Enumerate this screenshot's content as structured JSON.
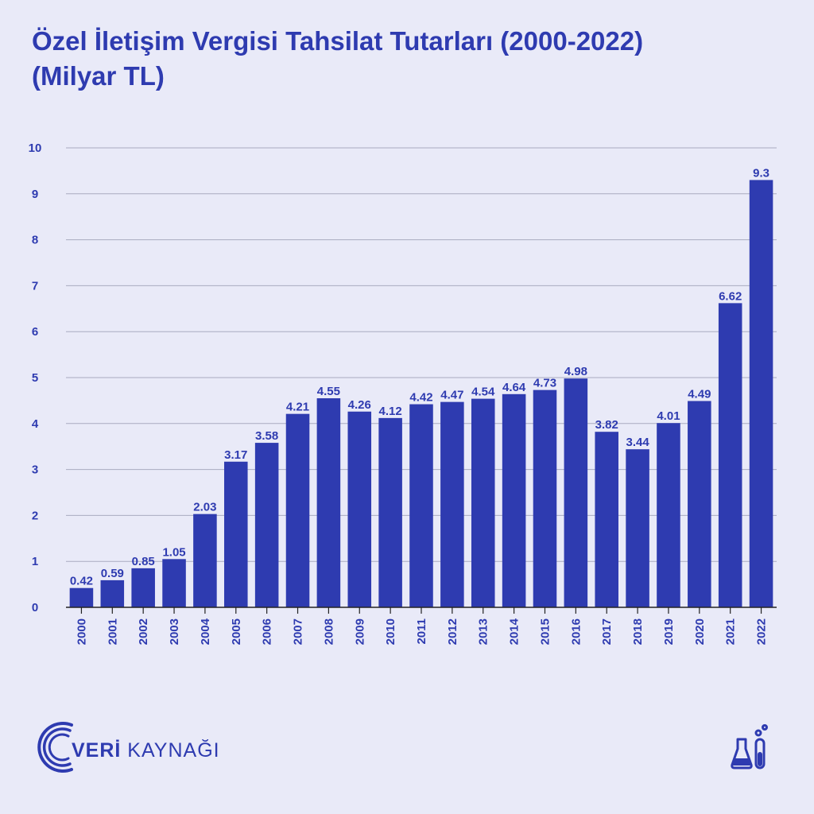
{
  "page": {
    "title_line1": "Özel İletişim Vergisi Tahsilat Tutarları (2000-2022)",
    "title_line2": "(Milyar TL)"
  },
  "brand": {
    "logo_bold": "VERİ",
    "logo_rest": " KAYNAĞI",
    "logo_icon": "signal-arcs-icon",
    "lab_icon": "lab-flask-icon"
  },
  "colors": {
    "background": "#e9eaf8",
    "bar": "#2e3bb0",
    "text": "#2e3bb0",
    "grid": "#a9abc0"
  },
  "chart_data": {
    "type": "bar",
    "title": "Özel İletişim Vergisi Tahsilat Tutarları (2000-2022) (Milyar TL)",
    "xlabel": "",
    "ylabel": "",
    "ylim": [
      0,
      10
    ],
    "yticks": [
      0,
      1,
      2,
      3,
      4,
      5,
      6,
      7,
      8,
      9,
      10
    ],
    "grid": true,
    "categories": [
      "2000",
      "2001",
      "2002",
      "2003",
      "2004",
      "2005",
      "2006",
      "2007",
      "2008",
      "2009",
      "2010",
      "2011",
      "2012",
      "2013",
      "2014",
      "2015",
      "2016",
      "2017",
      "2018",
      "2019",
      "2020",
      "2021",
      "2022"
    ],
    "values": [
      0.42,
      0.59,
      0.85,
      1.05,
      2.03,
      3.17,
      3.58,
      4.21,
      4.55,
      4.26,
      4.12,
      4.42,
      4.47,
      4.54,
      4.64,
      4.73,
      4.98,
      3.82,
      3.44,
      4.01,
      4.49,
      6.62,
      9.3
    ],
    "value_labels": [
      "0.42",
      "0.59",
      "0.85",
      "1.05",
      "2.03",
      "3.17",
      "3.58",
      "4.21",
      "4.55",
      "4.26",
      "4.12",
      "4.42",
      "4.47",
      "4.54",
      "4.64",
      "4.73",
      "4.98",
      "3.82",
      "3.44",
      "4.01",
      "4.49",
      "6.62",
      "9.3"
    ]
  }
}
